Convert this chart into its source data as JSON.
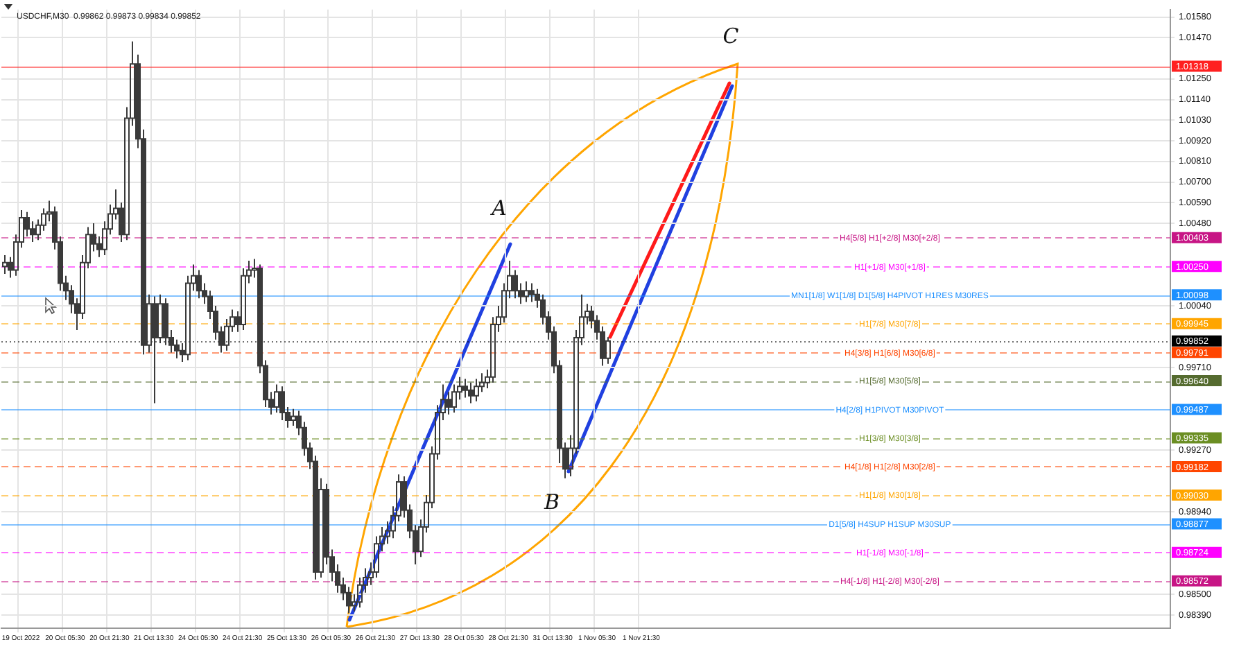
{
  "chart_data": {
    "type": "candlestick",
    "title": "USDCHF,M30  0.99862 0.99873 0.99834 0.99852",
    "color": "#3a3a3a",
    "grid": true,
    "ylim": [
      0.9832,
      1.0162
    ],
    "yticks": [
      {
        "value": 1.0158,
        "label": "1.01580"
      },
      {
        "value": 1.0147,
        "label": "1.01470"
      },
      {
        "value": 1.0125,
        "label": "1.01250"
      },
      {
        "value": 1.0114,
        "label": "1.01140"
      },
      {
        "value": 1.0103,
        "label": "1.01030"
      },
      {
        "value": 1.0092,
        "label": "1.00920"
      },
      {
        "value": 1.0081,
        "label": "1.00810"
      },
      {
        "value": 1.007,
        "label": "1.00700"
      },
      {
        "value": 1.0059,
        "label": "1.00590"
      },
      {
        "value": 1.0048,
        "label": "1.00480"
      },
      {
        "value": 1.0004,
        "label": "1.00040"
      },
      {
        "value": 0.9971,
        "label": "0.99710"
      },
      {
        "value": 0.9927,
        "label": "0.99270"
      },
      {
        "value": 0.9894,
        "label": "0.98940"
      },
      {
        "value": 0.985,
        "label": "0.98500"
      },
      {
        "value": 0.9839,
        "label": "0.98390"
      }
    ],
    "categories": [
      null,
      null,
      null,
      "19 Oct 2022",
      null,
      null,
      null,
      null,
      null,
      null,
      null,
      "20 Oct 05:30",
      null,
      null,
      null,
      null,
      null,
      null,
      null,
      "20 Oct 21:30",
      null,
      null,
      null,
      null,
      null,
      null,
      null,
      "21 Oct 13:30",
      null,
      null,
      null,
      null,
      null,
      null,
      null,
      "24 Oct 05:30",
      null,
      null,
      null,
      null,
      null,
      null,
      null,
      "24 Oct 21:30",
      null,
      null,
      null,
      null,
      null,
      null,
      null,
      "25 Oct 13:30",
      null,
      null,
      null,
      null,
      null,
      null,
      null,
      "26 Oct 05:30",
      null,
      null,
      null,
      null,
      null,
      null,
      null,
      "26 Oct 21:30",
      null,
      null,
      null,
      null,
      null,
      null,
      null,
      "27 Oct 13:30",
      null,
      null,
      null,
      null,
      null,
      null,
      null,
      "28 Oct 05:30",
      null,
      null,
      null,
      null,
      null,
      null,
      null,
      "28 Oct 21:30",
      null,
      null,
      null,
      null,
      null,
      null,
      null,
      "31 Oct 13:30",
      null,
      null,
      null,
      null,
      null,
      null,
      null,
      "1 Nov 05:30",
      null,
      null,
      null,
      null,
      null,
      null,
      null,
      "1 Nov 21:30",
      null,
      null,
      null,
      null,
      null,
      null,
      null,
      null,
      null,
      null,
      null,
      null,
      null,
      null,
      null,
      null,
      null,
      null,
      null,
      null,
      null,
      null,
      null,
      null,
      null,
      null,
      null,
      null,
      null,
      null,
      null,
      null,
      null,
      null,
      null,
      null,
      null,
      null,
      null,
      null,
      null,
      null,
      null,
      null,
      null,
      null,
      null,
      null,
      null,
      null,
      null,
      null,
      null,
      null,
      null,
      null,
      null,
      null,
      null,
      null,
      null,
      null,
      null,
      null,
      null,
      null,
      null,
      null,
      null,
      null,
      null,
      null,
      null,
      null,
      null,
      null,
      null,
      null,
      null,
      null,
      null,
      null,
      null,
      null,
      null,
      null,
      null,
      null,
      null,
      null,
      null,
      null,
      null,
      null,
      null
    ],
    "ohlc": [
      [
        1.0025,
        1.0031,
        1.0021,
        1.0027
      ],
      [
        1.0027,
        1.003,
        1.0019,
        1.0023
      ],
      [
        1.0023,
        1.0042,
        1.002,
        1.0038
      ],
      [
        1.0038,
        1.0055,
        1.0035,
        1.0051
      ],
      [
        1.0051,
        1.0054,
        1.0041,
        1.0045
      ],
      [
        1.0045,
        1.0049,
        1.0038,
        1.0042
      ],
      [
        1.0042,
        1.005,
        1.0039,
        1.0047
      ],
      [
        1.0047,
        1.0056,
        1.0044,
        1.0053
      ],
      [
        1.0053,
        1.006,
        1.0049,
        1.0054
      ],
      [
        1.0054,
        1.0057,
        1.0034,
        1.0038
      ],
      [
        1.0038,
        1.0041,
        1.0012,
        1.0016
      ],
      [
        1.0016,
        1.002,
        1.0007,
        1.0012
      ],
      [
        1.0012,
        1.0015,
        1.0,
        1.0005
      ],
      [
        1.0005,
        1.0008,
        0.9991,
        1.0
      ],
      [
        1.0,
        1.0031,
        0.9997,
        1.0027
      ],
      [
        1.0027,
        1.0046,
        1.0024,
        1.0042
      ],
      [
        1.0042,
        1.0048,
        1.0033,
        1.0037
      ],
      [
        1.0037,
        1.0041,
        1.003,
        1.0034
      ],
      [
        1.0034,
        1.0049,
        1.0031,
        1.0045
      ],
      [
        1.0045,
        1.0058,
        1.0042,
        1.0053
      ],
      [
        1.0053,
        1.0066,
        1.005,
        1.0056
      ],
      [
        1.0056,
        1.0059,
        1.0038,
        1.0042
      ],
      [
        1.0042,
        1.011,
        1.0039,
        1.0104
      ],
      [
        1.0104,
        1.0145,
        1.01,
        1.0133
      ],
      [
        1.0133,
        1.0138,
        1.0088,
        1.0093
      ],
      [
        1.0093,
        1.0098,
        0.9978,
        0.9983
      ],
      [
        0.9983,
        1.001,
        0.9979,
        1.0005
      ],
      [
        1.0005,
        1.0009,
        0.9952,
        0.9987
      ],
      [
        0.9987,
        1.001,
        0.9984,
        1.0005
      ],
      [
        1.0005,
        1.0008,
        0.9983,
        0.9987
      ],
      [
        0.9987,
        0.9991,
        0.9979,
        0.9983
      ],
      [
        0.9983,
        0.9986,
        0.9976,
        0.998
      ],
      [
        0.998,
        0.9984,
        0.9974,
        0.9978
      ],
      [
        0.9978,
        1.002,
        0.9975,
        1.0016
      ],
      [
        1.0016,
        1.0026,
        1.0012,
        1.002
      ],
      [
        1.002,
        1.0023,
        1.0008,
        1.0012
      ],
      [
        1.0012,
        1.0016,
        1.0005,
        1.0009
      ],
      [
        1.0009,
        1.0012,
        0.9997,
        1.0001
      ],
      [
        1.0001,
        1.0004,
        0.9986,
        0.999
      ],
      [
        0.999,
        0.9993,
        0.9979,
        0.9983
      ],
      [
        0.9983,
        0.9997,
        0.998,
        0.9993
      ],
      [
        0.9993,
        1.0002,
        0.999,
        0.9998
      ],
      [
        0.9998,
        1.0001,
        0.999,
        0.9994
      ],
      [
        0.9994,
        1.0024,
        0.9991,
        1.002
      ],
      [
        1.002,
        1.0028,
        1.0016,
        1.0023
      ],
      [
        1.0023,
        1.0029,
        1.0019,
        1.0024
      ],
      [
        1.0024,
        1.0026,
        0.9968,
        0.9972
      ],
      [
        0.9972,
        0.9975,
        0.995,
        0.9954
      ],
      [
        0.9954,
        0.9958,
        0.9946,
        0.995
      ],
      [
        0.995,
        0.9962,
        0.9947,
        0.9958
      ],
      [
        0.9958,
        0.9961,
        0.9943,
        0.9947
      ],
      [
        0.9947,
        0.995,
        0.9939,
        0.9943
      ],
      [
        0.9943,
        0.9949,
        0.994,
        0.9945
      ],
      [
        0.9945,
        0.9948,
        0.9935,
        0.9939
      ],
      [
        0.9939,
        0.9942,
        0.9924,
        0.9928
      ],
      [
        0.9928,
        0.9931,
        0.9917,
        0.9921
      ],
      [
        0.9921,
        0.9924,
        0.9858,
        0.9862
      ],
      [
        0.9862,
        0.9912,
        0.9859,
        0.9906
      ],
      [
        0.9906,
        0.9909,
        0.9866,
        0.987
      ],
      [
        0.987,
        0.9874,
        0.9857,
        0.9862
      ],
      [
        0.9862,
        0.9866,
        0.9851,
        0.9855
      ],
      [
        0.9855,
        0.9859,
        0.9847,
        0.9851
      ],
      [
        0.9851,
        0.9854,
        0.984,
        0.9844
      ],
      [
        0.9844,
        0.985,
        0.9841,
        0.9846
      ],
      [
        0.9846,
        0.9859,
        0.9843,
        0.9855
      ],
      [
        0.9855,
        0.9864,
        0.9851,
        0.9859
      ],
      [
        0.9859,
        0.9867,
        0.9855,
        0.9862
      ],
      [
        0.9862,
        0.9881,
        0.9859,
        0.9877
      ],
      [
        0.9877,
        0.9886,
        0.9873,
        0.9881
      ],
      [
        0.9881,
        0.9889,
        0.9877,
        0.9884
      ],
      [
        0.9884,
        0.9897,
        0.988,
        0.9892
      ],
      [
        0.9892,
        0.9914,
        0.9889,
        0.991
      ],
      [
        0.991,
        0.9913,
        0.9891,
        0.9895
      ],
      [
        0.9895,
        0.9898,
        0.988,
        0.9884
      ],
      [
        0.9884,
        0.9887,
        0.9866,
        0.9873
      ],
      [
        0.9873,
        0.989,
        0.987,
        0.9886
      ],
      [
        0.9886,
        0.9903,
        0.9883,
        0.9899
      ],
      [
        0.9899,
        0.9929,
        0.9896,
        0.9925
      ],
      [
        0.9925,
        0.9951,
        0.9922,
        0.9947
      ],
      [
        0.9947,
        0.9962,
        0.9943,
        0.9954
      ],
      [
        0.9954,
        0.9958,
        0.9946,
        0.995
      ],
      [
        0.995,
        0.9962,
        0.9947,
        0.9958
      ],
      [
        0.9958,
        0.9966,
        0.9954,
        0.9961
      ],
      [
        0.9961,
        0.9965,
        0.9955,
        0.9959
      ],
      [
        0.9959,
        0.9963,
        0.9952,
        0.9956
      ],
      [
        0.9956,
        0.9965,
        0.9953,
        0.9961
      ],
      [
        0.9961,
        0.9968,
        0.9958,
        0.9963
      ],
      [
        0.9963,
        0.997,
        0.996,
        0.9966
      ],
      [
        0.9966,
        0.9998,
        0.9963,
        0.9994
      ],
      [
        0.9994,
        1.0004,
        0.999,
        0.9998
      ],
      [
        0.9998,
        1.0016,
        0.9995,
        1.0012
      ],
      [
        1.0012,
        1.0028,
        1.0008,
        1.002
      ],
      [
        1.002,
        1.0023,
        1.0008,
        1.0012
      ],
      [
        1.0012,
        1.0016,
        1.0005,
        1.0009
      ],
      [
        1.0009,
        1.0017,
        1.0006,
        1.0012
      ],
      [
        1.0012,
        1.0016,
        1.0006,
        1.001
      ],
      [
        1.001,
        1.0013,
        1.0003,
        1.0007
      ],
      [
        1.0007,
        1.001,
        0.9994,
        0.9998
      ],
      [
        0.9998,
        1.0001,
        0.9986,
        0.999
      ],
      [
        0.999,
        0.9993,
        0.9968,
        0.9972
      ],
      [
        0.9972,
        0.9975,
        0.992,
        0.9928
      ],
      [
        0.9928,
        0.9931,
        0.9912,
        0.9917
      ],
      [
        0.9917,
        0.9935,
        0.9913,
        0.9928
      ],
      [
        0.9928,
        0.9991,
        0.9925,
        0.9987
      ],
      [
        0.9987,
        1.001,
        0.9983,
        0.9998
      ],
      [
        0.9998,
        1.0005,
        0.9994,
        1.0001
      ],
      [
        1.0001,
        1.0004,
        0.9992,
        0.9996
      ],
      [
        0.9996,
        0.9999,
        0.9986,
        0.999
      ],
      [
        0.999,
        0.9993,
        0.9972,
        0.9976
      ],
      [
        0.9976,
        0.99873,
        0.9973,
        0.99852
      ],
      null,
      null,
      null,
      null,
      null,
      null,
      null,
      null,
      null,
      null,
      null,
      null,
      null,
      null,
      null,
      null,
      null,
      null,
      null,
      null,
      null,
      null,
      null,
      null,
      null,
      null,
      null,
      null,
      null,
      null,
      null,
      null,
      null,
      null,
      null,
      null,
      null,
      null,
      null,
      null,
      null,
      null,
      null,
      null,
      null,
      null,
      null,
      null,
      null,
      null,
      null,
      null,
      null,
      null,
      null,
      null,
      null,
      null,
      null,
      null,
      null,
      null,
      null,
      null,
      null,
      null,
      null,
      null,
      null,
      null,
      null,
      null,
      null,
      null,
      null,
      null,
      null,
      null,
      null,
      null,
      null,
      null,
      null,
      null,
      null,
      null,
      null,
      null,
      null,
      null,
      null,
      null,
      null,
      null,
      null,
      null,
      null,
      null,
      null,
      null,
      null
    ],
    "ref_lines": [
      {
        "axis": "y",
        "value": 1.01318,
        "label": "1.01318",
        "color": "#ff2020",
        "line_style": "solid"
      },
      {
        "axis": "y",
        "value": 1.00403,
        "label": "1.00403",
        "color": "#c71585",
        "line_style": "dashed"
      },
      {
        "axis": "y",
        "value": 1.0025,
        "label": "1.00250",
        "color": "#ff00ff",
        "line_style": "dashed"
      },
      {
        "axis": "y",
        "value": 1.00098,
        "label": "1.00098",
        "color": "#1e90ff",
        "line_style": "solid"
      },
      {
        "axis": "y",
        "value": 0.99945,
        "label": "0.99945",
        "color": "#ffa500",
        "line_style": "dashed"
      },
      {
        "axis": "y",
        "value": 0.99852,
        "label": "0.99852",
        "color": "#000000",
        "line_style": "dotted"
      },
      {
        "axis": "y",
        "value": 0.99791,
        "label": "0.99791",
        "color": "#ff4500",
        "line_style": "dashed"
      },
      {
        "axis": "y",
        "value": 0.9964,
        "label": "0.99640",
        "color": "#556b2f",
        "line_style": "dashed"
      },
      {
        "axis": "y",
        "value": 0.99487,
        "label": "0.99487",
        "color": "#1e90ff",
        "line_style": "solid"
      },
      {
        "axis": "y",
        "value": 0.99335,
        "label": "0.99335",
        "color": "#6b8e23",
        "line_style": "dashed"
      },
      {
        "axis": "y",
        "value": 0.99182,
        "label": "0.99182",
        "color": "#ff4500",
        "line_style": "dashed"
      },
      {
        "axis": "y",
        "value": 0.9903,
        "label": "0.99030",
        "color": "#ffa500",
        "line_style": "dashed"
      },
      {
        "axis": "y",
        "value": 0.98877,
        "label": "0.98877",
        "color": "#1e90ff",
        "line_style": "solid"
      },
      {
        "axis": "y",
        "value": 0.98724,
        "label": "0.98724",
        "color": "#ff00ff",
        "line_style": "dashed"
      },
      {
        "axis": "y",
        "value": 0.98572,
        "label": "0.98572",
        "color": "#c71585",
        "line_style": "dashed"
      }
    ],
    "annotations": [
      "A",
      "B",
      "C",
      {
        "text": "H4[5/8] H1[+2/8] M30[+2/8]",
        "y": 1.00403
      },
      {
        "text": "H1[+1/8] M30[+1/8]",
        "y": 1.0025
      },
      {
        "text": "MN1[1/8] W1[1/8] D1[5/8] H4PIVOT H1RES M30RES",
        "y": 1.00098
      },
      {
        "text": "H1[7/8] M30[7/8]",
        "y": 0.99945
      },
      {
        "text": "H4[3/8] H1[6/8] M30[6/8]",
        "y": 0.99791
      },
      {
        "text": "H1[5/8] M30[5/8]",
        "y": 0.9964
      },
      {
        "text": "H4[2/8] H1PIVOT M30PIVOT",
        "y": 0.99487
      },
      {
        "text": "H1[3/8] M30[3/8]",
        "y": 0.99335
      },
      {
        "text": "H4[1/8] H1[2/8] M30[2/8]",
        "y": 0.99182
      },
      {
        "text": "H1[1/8] M30[1/8]",
        "y": 0.9903
      },
      {
        "text": "D1[5/8] H4SUP H1SUP M30SUP",
        "y": 0.98877
      },
      {
        "text": "H1[-1/8] M30[-1/8]",
        "y": 0.98724
      },
      {
        "text": "H4[-1/8] H1[-2/8] M30[-2/8]",
        "y": 0.98572
      }
    ]
  }
}
